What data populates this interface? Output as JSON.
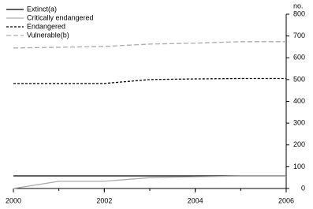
{
  "chart_data": {
    "type": "line",
    "y_label": "no.",
    "x": [
      2000,
      2001,
      2002,
      2003,
      2004,
      2005,
      2006
    ],
    "xlim": [
      2000,
      2006
    ],
    "xticks": [
      2000,
      2002,
      2004,
      2006
    ],
    "ylim": [
      0,
      800
    ],
    "yticks": [
      0,
      100,
      200,
      300,
      400,
      500,
      600,
      700,
      800
    ],
    "y_axis_side": "right",
    "legend": "top-left",
    "series": [
      {
        "name": "Extinct(a)",
        "color": "#000000",
        "linestyle": "solid",
        "values": [
          58,
          58,
          58,
          58,
          58,
          58,
          58
        ]
      },
      {
        "name": "Critically endangered",
        "color": "#aaaaaa",
        "linestyle": "solid",
        "values": [
          0,
          33,
          33,
          50,
          54,
          57,
          57
        ]
      },
      {
        "name": "Endangered",
        "color": "#000000",
        "linestyle": "dashed",
        "values": [
          482,
          482,
          482,
          500,
          503,
          505,
          505
        ]
      },
      {
        "name": "Vulnerable(b)",
        "color": "#aaaaaa",
        "linestyle": "dashed",
        "values": [
          645,
          648,
          652,
          663,
          667,
          674,
          674
        ]
      }
    ]
  }
}
